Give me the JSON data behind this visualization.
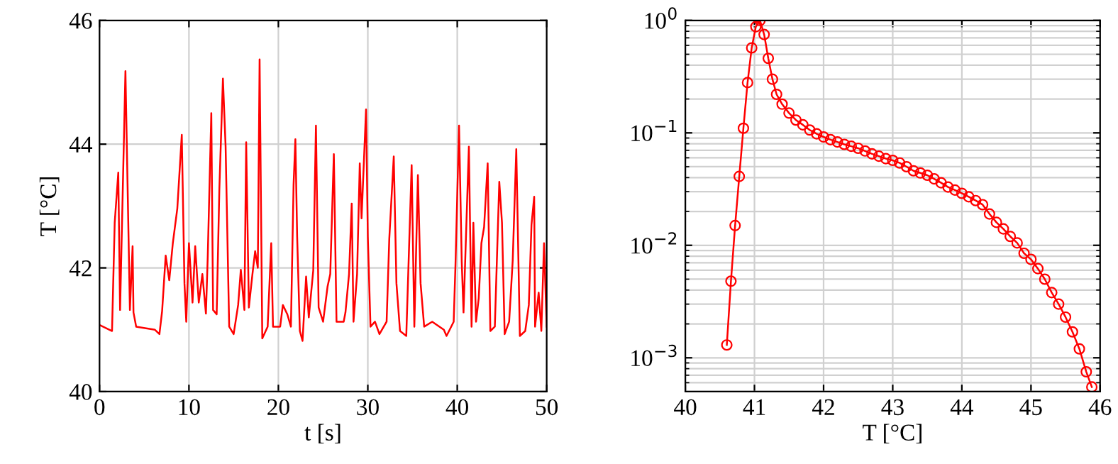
{
  "chart_data": [
    {
      "type": "line",
      "xlabel": "t [s]",
      "ylabel": "T [°C]",
      "xlim": [
        0,
        50
      ],
      "ylim": [
        40,
        46
      ],
      "xticks": [
        0,
        10,
        20,
        30,
        40,
        50
      ],
      "yticks": [
        40,
        42,
        44,
        46
      ],
      "grid": true,
      "marker": "none",
      "line_style": "solid",
      "series": [
        {
          "color": "#ff0000",
          "x": [
            0.1,
            1.4,
            1.7,
            2.1,
            2.3,
            2.9,
            3.4,
            3.7,
            3.8,
            4.1,
            6.2,
            6.7,
            7.0,
            7.4,
            7.8,
            8.2,
            8.7,
            9.2,
            9.5,
            9.7,
            10.0,
            10.4,
            10.7,
            11.1,
            11.5,
            11.9,
            12.1,
            12.5,
            12.7,
            13.1,
            13.4,
            13.8,
            14.1,
            14.5,
            15.0,
            15.5,
            15.8,
            16.2,
            16.4,
            16.7,
            17.1,
            17.4,
            17.7,
            17.9,
            18.2,
            18.8,
            19.2,
            19.4,
            20.2,
            20.5,
            21.0,
            21.4,
            21.7,
            21.9,
            22.1,
            22.4,
            22.7,
            23.1,
            23.4,
            23.9,
            24.2,
            24.5,
            25.0,
            25.5,
            25.8,
            26.2,
            26.5,
            27.3,
            27.5,
            27.9,
            28.2,
            28.4,
            28.8,
            29.1,
            29.3,
            29.8,
            30.0,
            30.3,
            30.8,
            31.3,
            32.1,
            32.4,
            32.9,
            33.2,
            33.6,
            34.3,
            34.9,
            35.2,
            35.6,
            35.9,
            36.3,
            37.2,
            38.5,
            38.8,
            39.6,
            39.8,
            40.2,
            40.5,
            40.7,
            41.3,
            41.6,
            41.8,
            42.1,
            42.4,
            42.7,
            43.0,
            43.4,
            43.7,
            44.2,
            44.7,
            45.0,
            45.3,
            45.8,
            46.2,
            46.6,
            47.0,
            47.6,
            48.0,
            48.3,
            48.6,
            48.7,
            49.1,
            49.4,
            49.7,
            50.0
          ],
          "values": [
            41.07,
            40.98,
            42.73,
            43.54,
            41.32,
            45.18,
            41.32,
            42.35,
            41.28,
            41.05,
            41.0,
            40.93,
            41.3,
            42.2,
            41.8,
            42.4,
            42.96,
            44.15,
            41.75,
            41.13,
            42.4,
            41.44,
            42.35,
            41.44,
            41.9,
            41.26,
            42.17,
            44.5,
            41.32,
            41.25,
            43.27,
            45.06,
            43.96,
            41.05,
            40.93,
            41.4,
            41.97,
            41.32,
            44.03,
            41.36,
            41.9,
            42.27,
            42.0,
            45.37,
            40.86,
            41.05,
            42.4,
            41.05,
            41.05,
            41.4,
            41.25,
            41.05,
            43.35,
            44.08,
            42.5,
            40.98,
            40.82,
            41.86,
            41.2,
            41.96,
            44.3,
            41.36,
            41.13,
            41.7,
            41.9,
            43.84,
            41.13,
            41.13,
            41.28,
            41.9,
            43.04,
            41.13,
            41.9,
            43.69,
            42.8,
            44.56,
            42.5,
            41.05,
            41.13,
            40.93,
            41.13,
            42.47,
            43.8,
            41.75,
            40.98,
            40.9,
            43.66,
            41.05,
            43.5,
            41.75,
            41.05,
            41.13,
            41.0,
            40.9,
            41.13,
            42.05,
            44.3,
            42.1,
            41.28,
            43.96,
            41.05,
            42.73,
            41.13,
            41.51,
            42.4,
            42.66,
            43.69,
            40.98,
            41.05,
            43.39,
            42.73,
            40.93,
            41.13,
            42.12,
            43.92,
            40.9,
            40.98,
            41.4,
            42.7,
            43.15,
            41.05,
            41.6,
            40.98,
            42.4,
            41.05
          ]
        }
      ]
    },
    {
      "type": "line",
      "xlabel": "T [°C]",
      "xlim": [
        40,
        46
      ],
      "ylim": [
        0.0005,
        1
      ],
      "xticks": [
        40,
        41,
        42,
        43,
        44,
        45,
        46
      ],
      "yticks": [
        {
          "value": 0.001,
          "label": "10$^{−3}$"
        },
        {
          "value": 0.01,
          "label": "10$^{−2}$"
        },
        {
          "value": 0.1,
          "label": "10$^{−1}$"
        },
        {
          "value": 1,
          "label": "10$^{0}$"
        }
      ],
      "log": "y",
      "grid": true,
      "marker": "circle",
      "line_style": "solid",
      "series": [
        {
          "color": "#ff0000",
          "x": [
            40.6,
            40.66,
            40.72,
            40.78,
            40.84,
            40.9,
            40.96,
            41.02,
            41.08,
            41.14,
            41.2,
            41.26,
            41.32,
            41.4,
            41.5,
            41.6,
            41.7,
            41.8,
            41.9,
            42.0,
            42.1,
            42.2,
            42.3,
            42.4,
            42.5,
            42.6,
            42.7,
            42.8,
            42.9,
            43.0,
            43.1,
            43.2,
            43.3,
            43.4,
            43.5,
            43.6,
            43.7,
            43.8,
            43.9,
            44.0,
            44.1,
            44.2,
            44.3,
            44.4,
            44.5,
            44.6,
            44.7,
            44.8,
            44.9,
            45.0,
            45.1,
            45.2,
            45.3,
            45.4,
            45.5,
            45.6,
            45.7,
            45.8,
            45.88
          ],
          "values": [
            0.0013,
            0.0048,
            0.015,
            0.041,
            0.11,
            0.28,
            0.57,
            0.88,
            1.0,
            0.75,
            0.46,
            0.3,
            0.22,
            0.18,
            0.15,
            0.13,
            0.118,
            0.106,
            0.098,
            0.092,
            0.087,
            0.083,
            0.079,
            0.076,
            0.073,
            0.069,
            0.065,
            0.062,
            0.059,
            0.057,
            0.054,
            0.05,
            0.046,
            0.044,
            0.042,
            0.039,
            0.036,
            0.033,
            0.031,
            0.029,
            0.027,
            0.025,
            0.023,
            0.019,
            0.016,
            0.014,
            0.012,
            0.0105,
            0.0085,
            0.0075,
            0.0062,
            0.005,
            0.0038,
            0.003,
            0.0023,
            0.0017,
            0.0012,
            0.00075,
            0.00055
          ]
        }
      ]
    }
  ]
}
